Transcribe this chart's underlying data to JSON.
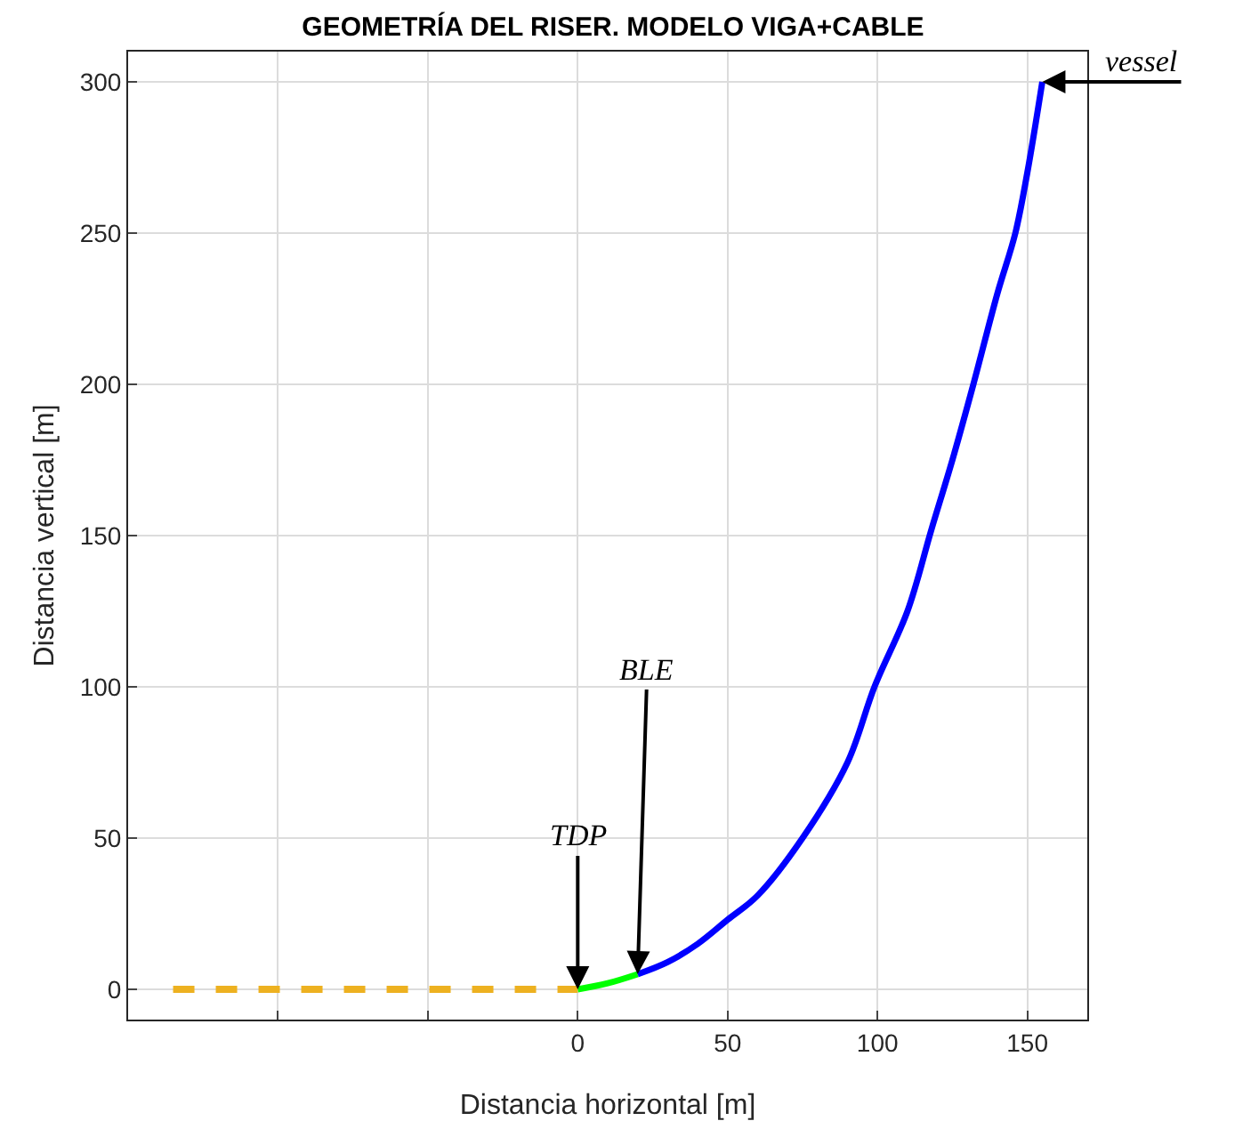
{
  "chart_data": {
    "type": "line",
    "title": "GEOMETRÍA DEL RISER. MODELO VIGA+CABLE",
    "xlabel": "Distancia horizontal [m]",
    "ylabel": "Distancia vertical [m]",
    "series": [
      {
        "color": "#edb120",
        "line_style": "dashed",
        "x": [
          -135,
          0
        ],
        "values": [
          0,
          0
        ]
      },
      {
        "color": "#00ff00",
        "line_style": "solid",
        "x": [
          0,
          10,
          20
        ],
        "values": [
          0,
          2,
          5
        ]
      },
      {
        "color": "#0000ff",
        "line_style": "solid",
        "x": [
          20,
          30,
          40,
          50,
          60,
          75,
          90,
          99,
          110,
          118,
          125,
          132,
          140,
          146,
          150,
          155
        ],
        "values": [
          5,
          9,
          15,
          23,
          31,
          50,
          75,
          100,
          125,
          152,
          175,
          200,
          230,
          250,
          270,
          300
        ]
      }
    ],
    "annotations": [
      {
        "text": "TDP",
        "x": 0,
        "y": 0
      },
      {
        "text": "BLE",
        "x": 20,
        "y": 5
      },
      {
        "text": "vessel",
        "x": 155,
        "y": 300
      }
    ],
    "xlim": [
      -150,
      170
    ],
    "xticks": [
      {
        "value": -150,
        "label": null
      },
      {
        "value": -100,
        "label": null
      },
      {
        "value": -50,
        "label": null
      },
      0,
      50,
      100,
      150
    ],
    "ylim": [
      -10,
      310
    ],
    "yticks": [
      0,
      50,
      100,
      150,
      200,
      250,
      300
    ],
    "grid": true,
    "marker": "none"
  }
}
